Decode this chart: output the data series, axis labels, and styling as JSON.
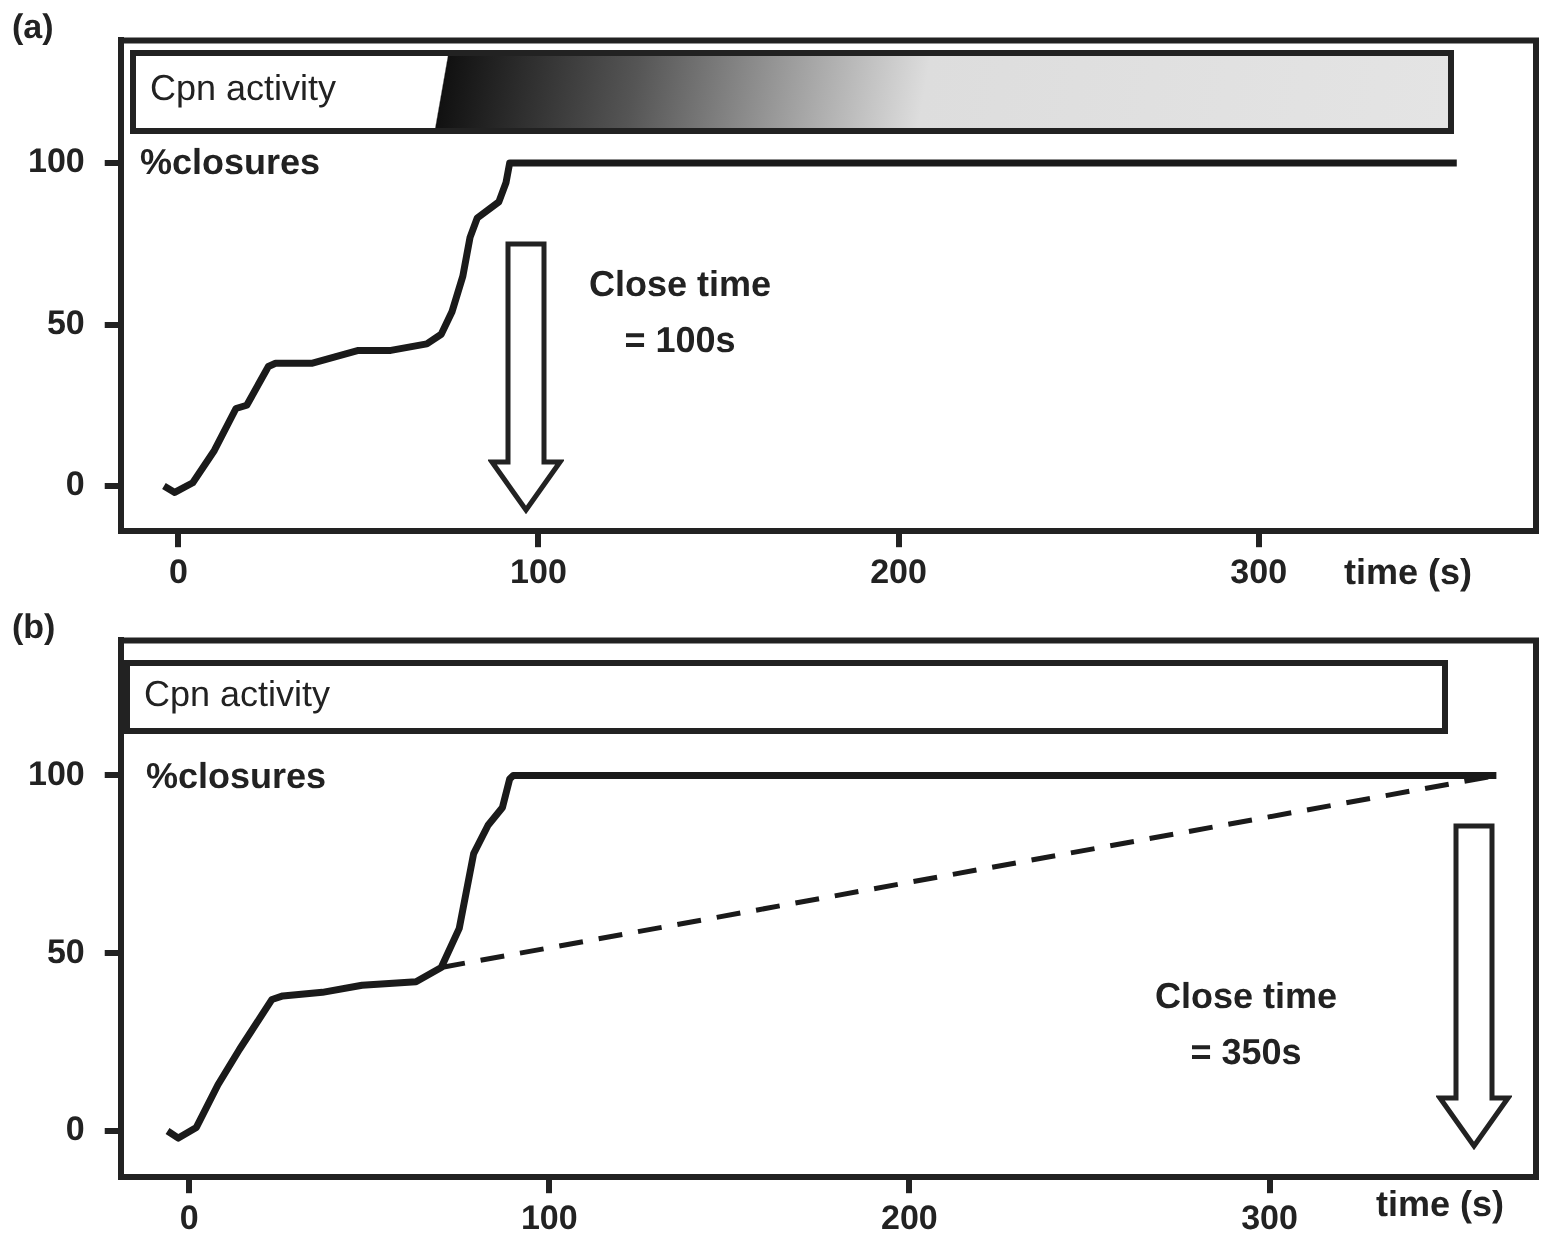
{
  "chart_data": [
    {
      "type": "line",
      "title": "(a)",
      "xlabel": "time (s)",
      "ylabel": "%closures",
      "annotations": [
        "Cpn activity",
        "Close time = 100s"
      ],
      "xlim": [
        -16,
        377
      ],
      "ylim": [
        -14,
        138
      ],
      "xticks": [
        0,
        100,
        200,
        300
      ],
      "yticks": [
        0,
        50,
        100
      ],
      "series": [
        {
          "color": "#1a1a1a",
          "x": [
            -4,
            -1,
            4,
            10,
            16,
            19,
            25,
            27,
            37,
            50,
            59,
            69,
            73,
            76,
            79,
            81,
            83,
            89,
            91,
            92,
            355
          ],
          "values": [
            0,
            -2,
            1,
            11,
            24,
            25,
            37,
            38,
            38,
            42,
            42,
            44,
            47,
            54,
            65,
            77,
            83,
            88,
            94,
            100,
            100
          ]
        }
      ]
    },
    {
      "type": "line",
      "title": "(b)",
      "xlabel": "time (s)",
      "ylabel": "%closures",
      "annotations": [
        "Cpn activity",
        "Close time = 350s"
      ],
      "xlim": [
        -19,
        374
      ],
      "ylim": [
        -13,
        138
      ],
      "xticks": [
        0,
        100,
        200,
        300
      ],
      "yticks": [
        0,
        50,
        100
      ],
      "series": [
        {
          "color": "#1a1a1a",
          "x": [
            -6,
            -3,
            2,
            8,
            14,
            23,
            26,
            37,
            48,
            63,
            70,
            75,
            79,
            83,
            87,
            89,
            90,
            363
          ],
          "values": [
            0,
            -2,
            1,
            13,
            23,
            37,
            38,
            39,
            41,
            42,
            46,
            57,
            78,
            86,
            91,
            99,
            100,
            100
          ]
        },
        {
          "color": "#1a1a1a",
          "line_style": "dashed",
          "x": [
            70,
            363
          ],
          "values": [
            46,
            100
          ]
        }
      ]
    }
  ]
}
